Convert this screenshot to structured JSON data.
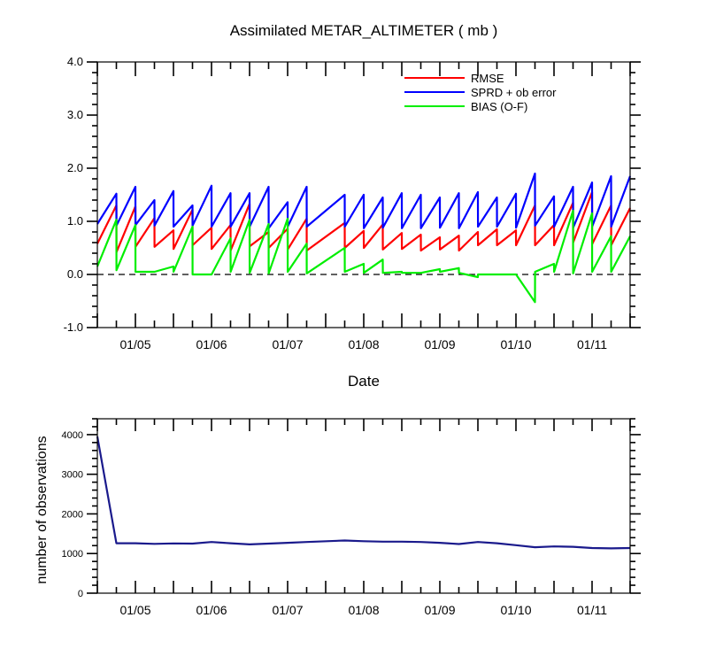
{
  "chart_data": [
    {
      "type": "line",
      "title": "Assimilated METAR_ALTIMETER ( mb )",
      "xlabel": "Date",
      "ylabel": "",
      "ylim": [
        -1.0,
        4.0
      ],
      "y_ticks": [
        "-1.0",
        "0.0",
        "1.0",
        "2.0",
        "3.0",
        "4.0"
      ],
      "x_ticks": [
        "01/05",
        "01/06",
        "01/07",
        "01/08",
        "01/09",
        "01/10",
        "01/11"
      ],
      "zero_line": "dashed",
      "grid": false,
      "legend_position": "top-right",
      "x": [
        4.5,
        4.75,
        4.751,
        5.0,
        5.001,
        5.25,
        5.251,
        5.5,
        5.501,
        5.75,
        5.751,
        6.0,
        6.001,
        6.25,
        6.251,
        6.5,
        6.501,
        6.75,
        6.751,
        7.0,
        7.001,
        7.25,
        7.251,
        7.75,
        7.751,
        8.0,
        8.001,
        8.25,
        8.251,
        8.5,
        8.501,
        8.75,
        8.751,
        9.0,
        9.001,
        9.25,
        9.251,
        9.5,
        9.501,
        9.75,
        9.751,
        10.0,
        10.001,
        10.25,
        10.251,
        10.5,
        10.501,
        10.75,
        10.751,
        11.0,
        11.001,
        11.25,
        11.251,
        11.5
      ],
      "series": [
        {
          "name": "RMSE",
          "color": "#ff0000",
          "values": [
            0.58,
            1.3,
            0.42,
            1.28,
            0.52,
            1.06,
            0.52,
            0.83,
            0.48,
            1.22,
            0.55,
            0.88,
            0.48,
            0.93,
            0.45,
            1.33,
            0.53,
            0.8,
            0.5,
            0.86,
            0.47,
            1.05,
            0.45,
            0.97,
            0.5,
            0.82,
            0.5,
            0.94,
            0.47,
            0.78,
            0.48,
            0.75,
            0.45,
            0.7,
            0.47,
            0.73,
            0.45,
            0.8,
            0.55,
            0.85,
            0.55,
            0.83,
            0.55,
            1.3,
            0.55,
            0.93,
            0.55,
            1.35,
            0.6,
            1.55,
            0.57,
            1.3,
            0.55,
            1.25
          ]
        },
        {
          "name": "SPRD + ob error",
          "color": "#0000ff",
          "values": [
            0.95,
            1.52,
            0.92,
            1.65,
            0.93,
            1.4,
            0.92,
            1.57,
            0.9,
            1.3,
            0.92,
            1.67,
            0.9,
            1.53,
            0.9,
            1.53,
            0.9,
            1.65,
            0.87,
            1.36,
            0.9,
            1.65,
            0.9,
            1.5,
            0.9,
            1.5,
            0.87,
            1.45,
            0.88,
            1.53,
            0.87,
            1.5,
            0.87,
            1.45,
            0.88,
            1.53,
            0.87,
            1.55,
            0.9,
            1.45,
            0.9,
            1.52,
            0.88,
            1.9,
            0.92,
            1.47,
            0.9,
            1.65,
            0.88,
            1.73,
            0.9,
            1.85,
            0.9,
            1.85
          ]
        },
        {
          "name": "BIAS (O-F)",
          "color": "#00ee00",
          "values": [
            0.15,
            1.03,
            0.08,
            0.93,
            0.05,
            0.05,
            0.05,
            0.15,
            0.05,
            0.9,
            0.0,
            0.0,
            0.0,
            0.68,
            0.05,
            1.03,
            0.03,
            0.95,
            0.02,
            1.05,
            0.05,
            0.58,
            0.02,
            0.5,
            0.05,
            0.2,
            0.03,
            0.28,
            0.03,
            0.05,
            0.03,
            0.03,
            0.03,
            0.1,
            0.05,
            0.12,
            0.03,
            -0.05,
            0.0,
            0.0,
            0.0,
            0.0,
            0.0,
            -0.52,
            0.05,
            0.2,
            0.05,
            1.2,
            0.02,
            1.15,
            0.05,
            0.72,
            0.05,
            0.72
          ]
        }
      ]
    },
    {
      "type": "line",
      "title": "",
      "xlabel": "",
      "ylabel": "number of observations",
      "ylim": [
        0,
        4400
      ],
      "y_ticks": [
        "0",
        "1000",
        "2000",
        "3000",
        "4000"
      ],
      "x_ticks": [
        "01/05",
        "01/06",
        "01/07",
        "01/08",
        "01/09",
        "01/10",
        "01/11"
      ],
      "grid": false,
      "x": [
        4.5,
        4.75,
        5.0,
        5.25,
        5.5,
        5.75,
        6.0,
        6.25,
        6.5,
        6.75,
        7.0,
        7.25,
        7.75,
        8.0,
        8.25,
        8.5,
        8.75,
        9.0,
        9.25,
        9.5,
        9.75,
        10.0,
        10.25,
        10.5,
        10.75,
        11.0,
        11.25,
        11.5
      ],
      "series": [
        {
          "color": "#1a1a8c",
          "values": [
            3950,
            1260,
            1260,
            1245,
            1255,
            1250,
            1290,
            1260,
            1230,
            1250,
            1270,
            1290,
            1330,
            1310,
            1300,
            1300,
            1290,
            1270,
            1240,
            1290,
            1260,
            1210,
            1160,
            1180,
            1170,
            1140,
            1130,
            1140
          ]
        }
      ]
    }
  ]
}
